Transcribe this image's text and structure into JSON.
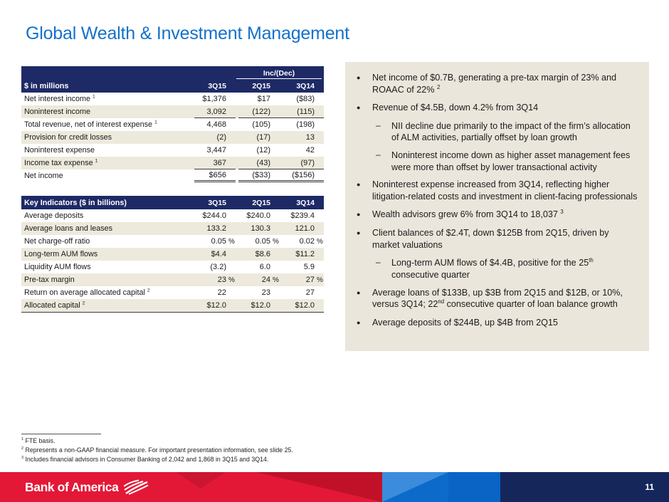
{
  "title": "Global Wealth & Investment Management",
  "income_table": {
    "unit_label": "$ in millions",
    "change_header": "Inc/(Dec)",
    "columns": [
      "3Q15",
      "2Q15",
      "3Q14"
    ],
    "rows": [
      {
        "label": "Net interest income",
        "sup": "1",
        "values": [
          "$1,376",
          "$17",
          "($83)"
        ]
      },
      {
        "label": "Noninterest income",
        "values": [
          "3,092",
          "(122)",
          "(115)"
        ],
        "rule_below": true
      },
      {
        "label": "Total revenue, net of interest expense",
        "sup": "1",
        "values": [
          "4,468",
          "(105)",
          "(198)"
        ]
      },
      {
        "label": "Provision for credit losses",
        "values": [
          "(2)",
          "(17)",
          "13"
        ]
      },
      {
        "label": "Noninterest expense",
        "values": [
          "3,447",
          "(12)",
          "42"
        ]
      },
      {
        "label": "Income tax expense",
        "sup": "1",
        "values": [
          "367",
          "(43)",
          "(97)"
        ],
        "rule_below": true
      },
      {
        "label": "Net income",
        "values": [
          "$656",
          "($33)",
          "($156)"
        ],
        "double_rule_below": true
      }
    ]
  },
  "key_indicators_table": {
    "header_label": "Key Indicators ($ in billions)",
    "columns": [
      "3Q15",
      "2Q15",
      "3Q14"
    ],
    "rows": [
      {
        "label": "Average deposits",
        "values": [
          "$244.0",
          "$240.0",
          "$239.4"
        ]
      },
      {
        "label": "Average loans and leases",
        "values": [
          "133.2",
          "130.3",
          "121.0"
        ]
      },
      {
        "label": "Net charge-off ratio",
        "values": [
          "0.05",
          "0.05",
          "0.02"
        ],
        "percent": true
      },
      {
        "label": "Long-term AUM flows",
        "values": [
          "$4.4",
          "$8.6",
          "$11.2"
        ]
      },
      {
        "label": "Liquidity AUM flows",
        "values": [
          "(3.2)",
          "6.0",
          "5.9"
        ]
      },
      {
        "label": "Pre-tax margin",
        "values": [
          "23",
          "24",
          "27"
        ],
        "percent": true
      },
      {
        "label": "Return on average allocated capital",
        "sup": "2",
        "values": [
          "22",
          "23",
          "27"
        ]
      },
      {
        "label": "Allocated capital",
        "sup": "2",
        "values": [
          "$12.0",
          "$12.0",
          "$12.0"
        ]
      }
    ]
  },
  "highlights": [
    {
      "level": 1,
      "text": "Net income of $0.7B, generating a pre-tax margin of 23% and ROAAC of 22% ^{2}"
    },
    {
      "level": 1,
      "text": "Revenue of $4.5B, down 4.2% from 3Q14"
    },
    {
      "level": 2,
      "text": "NII decline due primarily to the impact of the firm’s allocation of ALM activities, partially offset by loan growth"
    },
    {
      "level": 2,
      "text": "Noninterest income down as higher asset management fees were more than offset by lower transactional activity"
    },
    {
      "level": 1,
      "text": "Noninterest expense increased from 3Q14, reflecting higher litigation-related costs and investment in client-facing professionals"
    },
    {
      "level": 1,
      "text": "Wealth advisors grew 6% from 3Q14 to 18,037 ^{3}"
    },
    {
      "level": 1,
      "text": "Client balances of $2.4T, down $125B from 2Q15, driven by market valuations"
    },
    {
      "level": 2,
      "text": "Long-term AUM flows of $4.4B, positive for the 25^{th} consecutive quarter"
    },
    {
      "level": 1,
      "text": "Average loans of $133B, up $3B from 2Q15 and $12B, or 10%, versus 3Q14; 22^{nd} consecutive quarter of loan balance growth"
    },
    {
      "level": 1,
      "text": "Average deposits of $244B, up $4B from 2Q15"
    }
  ],
  "footnotes": [
    {
      "sup": "1",
      "text": "FTE basis."
    },
    {
      "sup": "2",
      "text": "Represents a non-GAAP financial measure. For important presentation information, see slide 25."
    },
    {
      "sup": "3",
      "text": "Includes financial advisors in Consumer Banking of 2,042 and 1,868 in 3Q15 and 3Q14."
    }
  ],
  "footer": {
    "logo_text": "Bank of America",
    "page_number": "11"
  },
  "colors": {
    "title_blue": "#1471CB",
    "table_header_navy": "#1E2A66",
    "row_stripe_beige": "#EDE9DC",
    "panel_beige": "#EAE6DB",
    "footer_red": "#E31837",
    "footer_red_dark": "#C01129",
    "footer_blue": "#0C6BCA",
    "footer_blue_light": "#3B8CDC",
    "footer_blue_mid": "#0A64C6",
    "footer_navy": "#15265B"
  }
}
